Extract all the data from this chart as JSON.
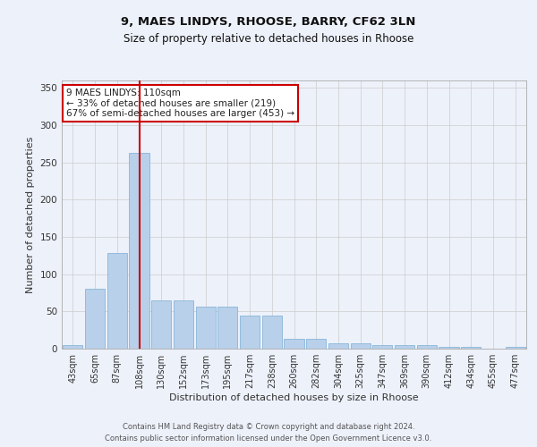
{
  "title1": "9, MAES LINDYS, RHOOSE, BARRY, CF62 3LN",
  "title2": "Size of property relative to detached houses in Rhoose",
  "xlabel": "Distribution of detached houses by size in Rhoose",
  "ylabel": "Number of detached properties",
  "categories": [
    "43sqm",
    "65sqm",
    "87sqm",
    "108sqm",
    "130sqm",
    "152sqm",
    "173sqm",
    "195sqm",
    "217sqm",
    "238sqm",
    "260sqm",
    "282sqm",
    "304sqm",
    "325sqm",
    "347sqm",
    "369sqm",
    "390sqm",
    "412sqm",
    "434sqm",
    "455sqm",
    "477sqm"
  ],
  "values": [
    5,
    81,
    128,
    263,
    65,
    65,
    56,
    56,
    45,
    45,
    13,
    13,
    7,
    7,
    5,
    5,
    5,
    3,
    3,
    0,
    2
  ],
  "bar_color": "#b8d0ea",
  "bar_edge_color": "#7aadd4",
  "vline_x_index": 3,
  "vline_color": "#cc0000",
  "annotation_text": "9 MAES LINDYS: 110sqm\n← 33% of detached houses are smaller (219)\n67% of semi-detached houses are larger (453) →",
  "annotation_box_color": "#ffffff",
  "annotation_box_edge": "#cc0000",
  "ylim": [
    0,
    360
  ],
  "yticks": [
    0,
    50,
    100,
    150,
    200,
    250,
    300,
    350
  ],
  "footer": "Contains HM Land Registry data © Crown copyright and database right 2024.\nContains public sector information licensed under the Open Government Licence v3.0.",
  "bg_color": "#edf1fa",
  "plot_bg_color": "#edf1fa",
  "title1_fontsize": 9.5,
  "title2_fontsize": 8.5,
  "xlabel_fontsize": 8,
  "ylabel_fontsize": 8,
  "footer_fontsize": 6,
  "tick_fontsize": 7,
  "ytick_fontsize": 7.5
}
